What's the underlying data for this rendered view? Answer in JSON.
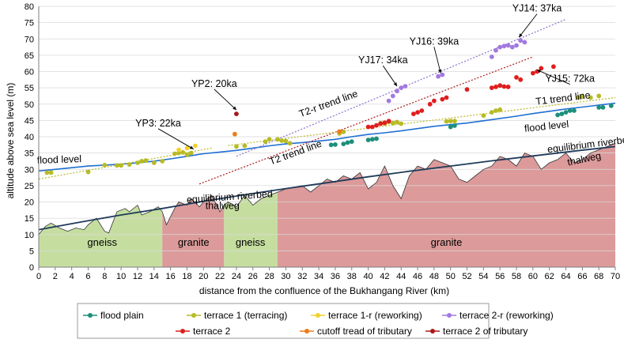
{
  "chart_data": {
    "type": "line",
    "xlabel": "distance from the confluence of the Bukhangang River (km)",
    "ylabel": "altitude above sea level (m)",
    "xlim": [
      0,
      70
    ],
    "ylim": [
      0,
      80
    ],
    "xticks": [
      0,
      2,
      4,
      6,
      8,
      10,
      12,
      14,
      16,
      18,
      20,
      22,
      24,
      26,
      28,
      30,
      32,
      34,
      36,
      38,
      40,
      42,
      44,
      46,
      48,
      50,
      52,
      54,
      56,
      58,
      60,
      62,
      64,
      66,
      68,
      70
    ],
    "yticks": [
      0,
      5,
      10,
      15,
      20,
      25,
      30,
      35,
      40,
      45,
      50,
      55,
      60,
      65,
      70,
      75,
      80
    ],
    "colors": {
      "flood_level": "#1f6fd1",
      "equilibrium": "#1f3b5a",
      "thalweg": "#333333",
      "gneiss": "#c5dea0",
      "granite": "#dc9a9a",
      "flood_plain": "#1b8f7a",
      "terrace1": "#b7bb24",
      "terrace1r": "#f2d22a",
      "terrace2r": "#a279e0",
      "terrace2": "#e01e1e",
      "cutoff": "#ef7b1a",
      "terrace2trib": "#a81818",
      "t2_trend": "#b01818",
      "t2r_trend": "#8e6fcc",
      "t1_trend": "#b9b92a"
    },
    "flood_level": {
      "x": [
        0,
        2,
        4,
        6,
        8,
        10,
        12,
        14,
        16,
        18,
        20,
        22,
        24,
        26,
        28,
        30,
        32,
        34,
        36,
        38,
        40,
        42,
        44,
        46,
        48,
        50,
        52,
        54,
        56,
        58,
        60,
        62,
        64,
        66,
        68,
        70
      ],
      "y": [
        29.5,
        30,
        30.5,
        31,
        31.3,
        31.6,
        32,
        32.5,
        33.2,
        34,
        34.8,
        35.3,
        35.8,
        36.5,
        37.2,
        37.8,
        38.2,
        38.7,
        39.2,
        40,
        40.7,
        41.2,
        41.8,
        42.5,
        43.2,
        43.7,
        44.2,
        44.9,
        45.6,
        46.3,
        47.1,
        47.8,
        48.5,
        49.1,
        49.7,
        50.3
      ]
    },
    "equilibrium_riverbed": {
      "x": [
        0,
        5,
        10,
        15,
        20,
        25,
        30,
        35,
        40,
        45,
        50,
        55,
        60,
        65,
        70
      ],
      "y": [
        11.5,
        13.8,
        16,
        18,
        20.2,
        22.2,
        24.1,
        25.9,
        27.7,
        29.4,
        31,
        32.6,
        34.1,
        35.6,
        37
      ]
    },
    "thalweg": {
      "x": [
        0,
        0.8,
        1.5,
        2.5,
        3.5,
        4.5,
        5.5,
        6,
        7,
        8,
        8.5,
        9.5,
        10.5,
        11,
        12,
        12.5,
        13.5,
        14.5,
        15,
        15.5,
        16.5,
        17,
        18,
        18.5,
        19.5,
        20,
        21,
        22,
        22.5,
        23,
        24,
        25,
        26,
        27,
        28,
        29,
        30,
        31,
        32,
        33,
        34,
        35,
        36,
        37,
        38,
        39,
        40,
        41,
        42,
        43,
        44,
        45,
        46,
        47,
        48,
        49,
        50,
        51,
        52,
        53,
        54,
        55,
        56,
        57,
        58,
        59,
        60,
        61,
        62,
        63,
        64,
        65,
        66,
        67,
        68,
        69,
        70
      ],
      "y": [
        10,
        12.5,
        13.5,
        12,
        11,
        12,
        11.5,
        13,
        15,
        11,
        10.5,
        17,
        18,
        17,
        19,
        16,
        17,
        18.5,
        17,
        13,
        18,
        20,
        19,
        21,
        18.5,
        20,
        22,
        17,
        19,
        20,
        18.5,
        22,
        19,
        21,
        22,
        23,
        24,
        24.5,
        25,
        23,
        25,
        27,
        26,
        28,
        27,
        29,
        24,
        26,
        31,
        25,
        21,
        28,
        31,
        30,
        33,
        32,
        31,
        27,
        26,
        28,
        30,
        31,
        34,
        33,
        31,
        35,
        34,
        30,
        32,
        33,
        35,
        32,
        33,
        35,
        36,
        37,
        38
      ]
    },
    "geology": [
      {
        "rock": "gneiss",
        "x0": 0,
        "x1": 15
      },
      {
        "rock": "granite",
        "x0": 15,
        "x1": 22.5
      },
      {
        "rock": "gneiss",
        "x0": 22.5,
        "x1": 29
      },
      {
        "rock": "granite",
        "x0": 29,
        "x1": 70
      }
    ],
    "geology_labels": [
      {
        "text": "gneiss",
        "x": 7.7,
        "y": 7.5
      },
      {
        "text": "granite",
        "x": 18.8,
        "y": 7.5
      },
      {
        "text": "gneiss",
        "x": 25.7,
        "y": 7.5
      },
      {
        "text": "granite",
        "x": 49.5,
        "y": 7.5
      }
    ],
    "trend_lines": [
      {
        "name": "T2 trend line",
        "series": "terrace2",
        "x": [
          19.5,
          60
        ],
        "y": [
          25.5,
          64.5
        ]
      },
      {
        "name": "T2-r trend line",
        "series": "terrace2r",
        "x": [
          24,
          64
        ],
        "y": [
          34,
          76
        ]
      },
      {
        "name": "T1 trend line",
        "series": "terrace1",
        "x": [
          23,
          70
        ],
        "y": [
          37.3,
          52
        ]
      },
      {
        "name": "",
        "series": "terrace1",
        "x": [
          0,
          21
        ],
        "y": [
          27,
          36.5
        ]
      }
    ],
    "series": [
      {
        "name": "flood plain",
        "key": "flood_plain",
        "points": [
          [
            35.5,
            37.5
          ],
          [
            36,
            37.6
          ],
          [
            37,
            37.8
          ],
          [
            37.5,
            38.2
          ],
          [
            38,
            38.5
          ],
          [
            40,
            39
          ],
          [
            40.5,
            39.2
          ],
          [
            41,
            39.4
          ],
          [
            50,
            43
          ],
          [
            50.5,
            43.4
          ],
          [
            63,
            46.7
          ],
          [
            63.5,
            47
          ],
          [
            64,
            47.5
          ],
          [
            64.5,
            48
          ],
          [
            65,
            48
          ],
          [
            68,
            49
          ],
          [
            68.5,
            49
          ],
          [
            69.5,
            49.5
          ]
        ]
      },
      {
        "name": "terrace 1 (terracing)",
        "key": "terrace1",
        "points": [
          [
            1,
            29
          ],
          [
            1.5,
            29
          ],
          [
            6,
            29.2
          ],
          [
            8,
            31.3
          ],
          [
            9.5,
            31.2
          ],
          [
            10,
            31.2
          ],
          [
            11,
            31.5
          ],
          [
            12,
            32
          ],
          [
            12.5,
            32.5
          ],
          [
            13,
            32.7
          ],
          [
            14,
            32
          ],
          [
            15,
            32.5
          ],
          [
            16.5,
            34.8
          ],
          [
            17,
            35
          ],
          [
            17.5,
            35.2
          ],
          [
            18,
            34.5
          ],
          [
            18.5,
            35
          ],
          [
            24,
            37
          ],
          [
            25,
            37.2
          ],
          [
            27.5,
            38.5
          ],
          [
            28,
            39.2
          ],
          [
            29,
            39.2
          ],
          [
            29.5,
            38.8
          ],
          [
            30,
            38.7
          ],
          [
            30.5,
            38
          ],
          [
            36.5,
            41
          ],
          [
            37,
            41.5
          ],
          [
            41.5,
            44.2
          ],
          [
            42,
            44
          ],
          [
            42.5,
            44.5
          ],
          [
            43,
            44.2
          ],
          [
            43.5,
            44.5
          ],
          [
            44,
            44
          ],
          [
            49.5,
            44.7
          ],
          [
            50,
            44.8
          ],
          [
            50.5,
            44.8
          ],
          [
            54,
            46.5
          ],
          [
            55,
            47.5
          ],
          [
            55.5,
            48
          ],
          [
            56,
            48.3
          ],
          [
            65.5,
            52
          ],
          [
            66,
            52.3
          ],
          [
            67,
            52
          ],
          [
            68,
            52.5
          ]
        ]
      },
      {
        "name": "terrace 1-r (reworking)",
        "key": "terrace1r",
        "points": [
          [
            17,
            36
          ],
          [
            18,
            36.5
          ],
          [
            19,
            37.2
          ]
        ]
      },
      {
        "name": "terrace 2-r (reworking)",
        "key": "terrace2r",
        "points": [
          [
            42.5,
            51
          ],
          [
            43,
            52.5
          ],
          [
            43.5,
            54
          ],
          [
            44,
            55
          ],
          [
            44.5,
            55.5
          ],
          [
            48.5,
            58.5
          ],
          [
            49,
            59
          ],
          [
            55,
            64.5
          ],
          [
            55.5,
            66.5
          ],
          [
            56,
            67.5
          ],
          [
            56.5,
            67.8
          ],
          [
            57,
            68
          ],
          [
            57.5,
            67.5
          ],
          [
            58,
            68
          ],
          [
            58.5,
            69.5
          ],
          [
            59,
            69
          ]
        ]
      },
      {
        "name": "terrace 2",
        "key": "terrace2",
        "points": [
          [
            40,
            43
          ],
          [
            40.5,
            43
          ],
          [
            41,
            43.5
          ],
          [
            41.5,
            44
          ],
          [
            42,
            44.3
          ],
          [
            42.5,
            44.8
          ],
          [
            45.5,
            47
          ],
          [
            46,
            47.5
          ],
          [
            46.5,
            48
          ],
          [
            47.5,
            50
          ],
          [
            48,
            51
          ],
          [
            49,
            51.5
          ],
          [
            49.5,
            52
          ],
          [
            52,
            54.5
          ],
          [
            55,
            55
          ],
          [
            55.5,
            55.3
          ],
          [
            56,
            55.7
          ],
          [
            56.5,
            55.4
          ],
          [
            57,
            55.3
          ],
          [
            58,
            58.2
          ],
          [
            58.5,
            57.5
          ],
          [
            60,
            59.5
          ],
          [
            60.5,
            60
          ],
          [
            61,
            61
          ],
          [
            62.5,
            61.5
          ]
        ]
      },
      {
        "name": "cutoff tread of tributary",
        "key": "cutoff",
        "points": [
          [
            23.8,
            40.8
          ],
          [
            36.5,
            41.6
          ]
        ]
      },
      {
        "name": "terrace 2 of tributary",
        "key": "terrace2trib",
        "points": [
          [
            24,
            47
          ]
        ]
      }
    ],
    "annotations": [
      {
        "text": "YP3: 22ka",
        "x": 14.5,
        "y": 43.2,
        "ax": 18.8,
        "ay": 36.2
      },
      {
        "text": "YP2: 20ka",
        "x": 21.3,
        "y": 55.3,
        "ax": 24,
        "ay": 48.2
      },
      {
        "text": "YJ17: 34ka",
        "x": 41.8,
        "y": 62.5,
        "ax": 43.5,
        "ay": 55.5
      },
      {
        "text": "YJ16: 39ka",
        "x": 48,
        "y": 68.3,
        "ax": 48.8,
        "ay": 59.5
      },
      {
        "text": "YJ14: 37ka",
        "x": 60.5,
        "y": 78.4,
        "ax": 58.3,
        "ay": 70.5
      },
      {
        "text": "YJ15: 72ka",
        "x": 64.5,
        "y": 56.8,
        "ax": 60.5,
        "ay": 60.5
      }
    ],
    "line_labels": [
      {
        "text": "flood level",
        "x": 2.5,
        "y": 32,
        "rot": -2
      },
      {
        "text": "flood level",
        "x": 61.7,
        "y": 42.2,
        "rot": -6
      },
      {
        "text": "equilibrium riverbed",
        "x": 23.2,
        "y": 20.6,
        "rot": -4
      },
      {
        "text": "equilibrium riverbed",
        "x": 67,
        "y": 36.7,
        "rot": -7
      },
      {
        "text": "thalweg",
        "x": 22.3,
        "y": 17.8,
        "rot": 0
      },
      {
        "text": "thalweg",
        "x": 66.3,
        "y": 32.2,
        "rot": -12
      },
      {
        "text": "T1 trend line",
        "x": 63.7,
        "y": 50.8,
        "rot": -7
      },
      {
        "text": "T2 trend line",
        "x": 31.3,
        "y": 34.2,
        "rot": -20
      },
      {
        "text": "T2-r trend line",
        "x": 35.3,
        "y": 49.2,
        "rot": -20
      }
    ],
    "legend": [
      {
        "key": "flood_plain",
        "label": "flood plain"
      },
      {
        "key": "terrace1",
        "label": "terrace 1 (terracing)"
      },
      {
        "key": "terrace1r",
        "label": "terrace 1-r (reworking)"
      },
      {
        "key": "terrace2r",
        "label": "terrace 2-r (reworking)"
      },
      {
        "key": "terrace2",
        "label": "terrace 2"
      },
      {
        "key": "cutoff",
        "label": "cutoff tread of tributary"
      },
      {
        "key": "terrace2trib",
        "label": "terrace 2 of tributary"
      }
    ]
  }
}
